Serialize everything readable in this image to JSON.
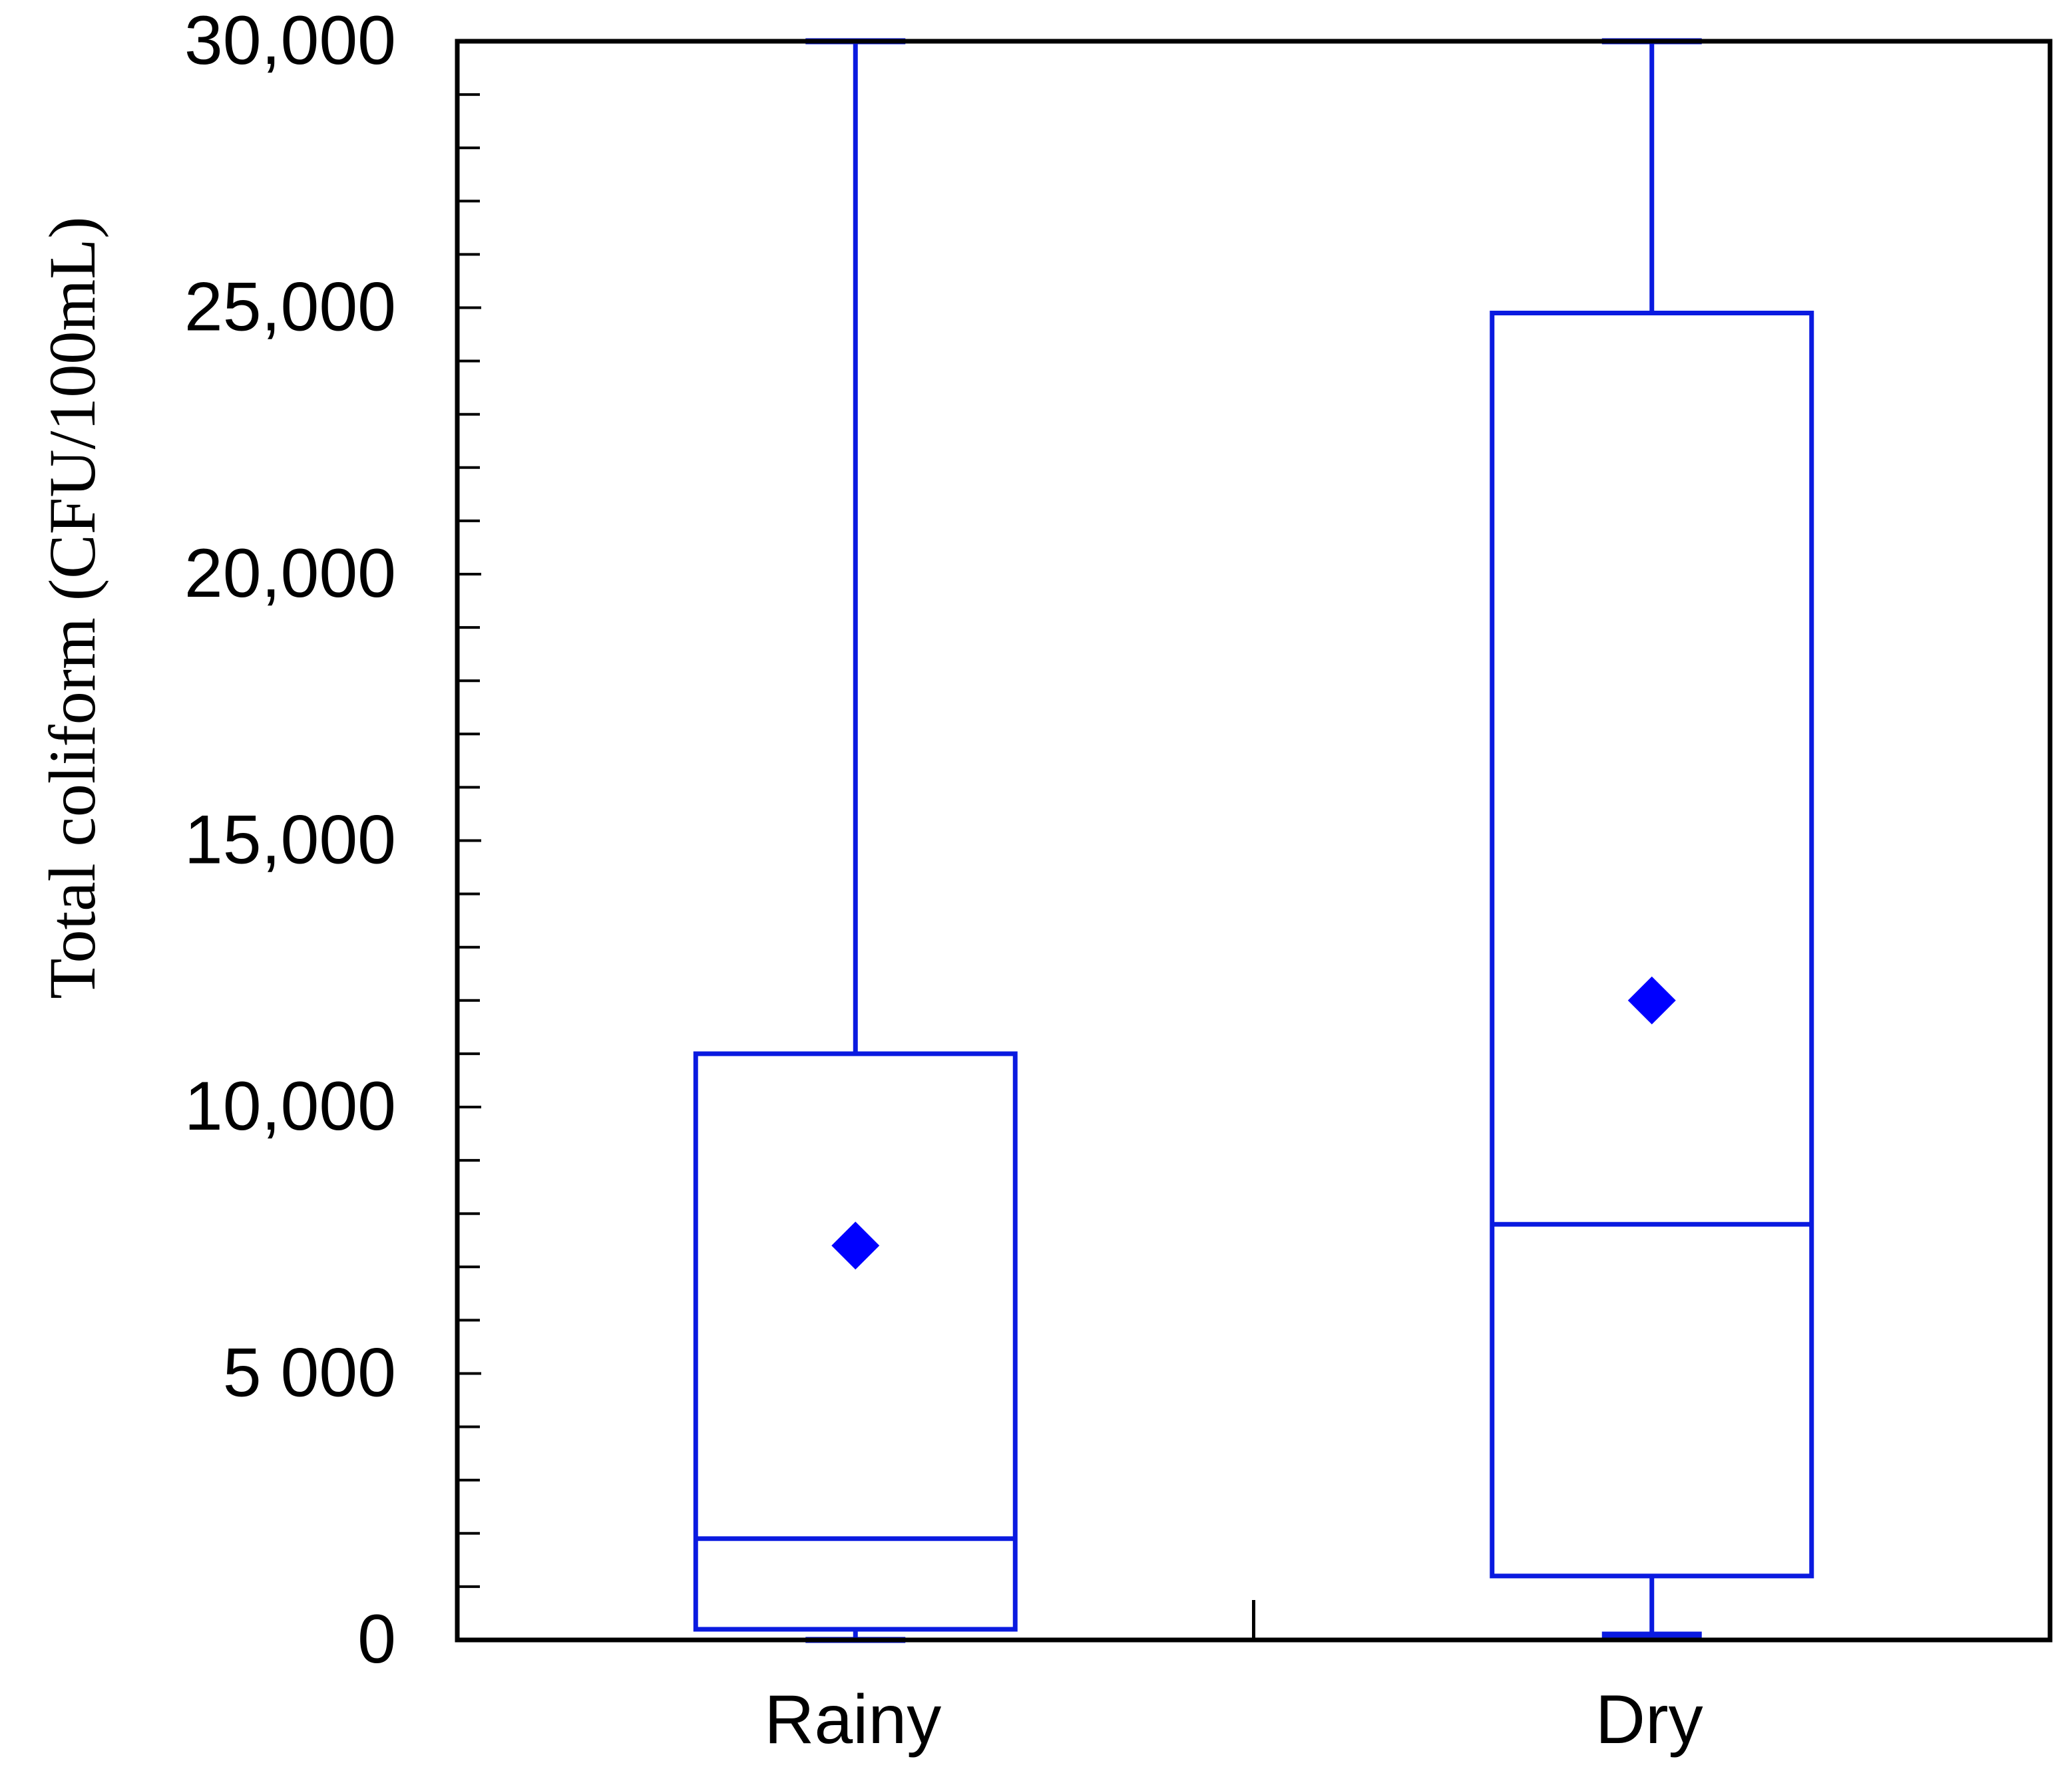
{
  "chart_data": {
    "type": "box",
    "ylabel": "Total coliform (CFU/100mL)",
    "ylim": [
      0,
      30000
    ],
    "y_major_ticks": [
      0,
      5000,
      10000,
      15000,
      20000,
      25000,
      30000
    ],
    "y_tick_labels": [
      "0",
      "5 000",
      "10,000",
      "15,000",
      "20,000",
      "25,000",
      "30,000"
    ],
    "y_minor_step": 1000,
    "categories": [
      "Rainy",
      "Dry"
    ],
    "boxes": [
      {
        "category": "Rainy",
        "whisker_low": 0,
        "q1": 200,
        "median": 1900,
        "q3": 11000,
        "whisker_high": 30000,
        "mean": 7400
      },
      {
        "category": "Dry",
        "whisker_low": 100,
        "q1": 1200,
        "median": 7800,
        "q3": 24900,
        "whisker_high": 30000,
        "mean": 12000
      }
    ],
    "colors": {
      "series": "#0a1ae0",
      "mean_marker": "#0000ff",
      "frame": "#000000"
    },
    "grid": false,
    "legend": "none"
  }
}
